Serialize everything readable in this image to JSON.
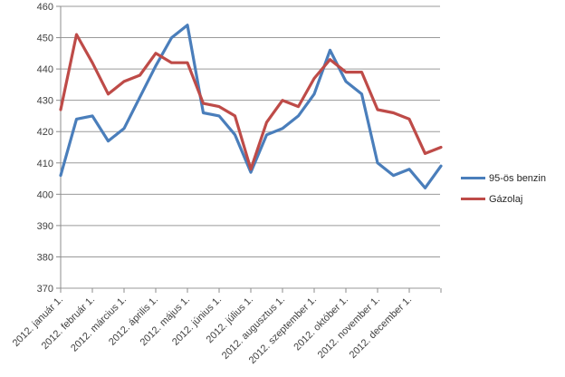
{
  "chart_data": {
    "type": "line",
    "title": "",
    "x_axis": {
      "tick_labels": [
        "2012. január 1.",
        "2012. február 1.",
        "2012. március 1.",
        "2012. április 1.",
        "2012. május 1.",
        "2012. június 1.",
        "2012. július 1.",
        "2012. augusztus 1.",
        "2012. szeptember 1.",
        "2012. október 1.",
        "2012. november 1.",
        "2012. december 1."
      ],
      "points_per_tick": 2,
      "note_frequency": "semi-monthly points, labels on month ticks"
    },
    "y_axis": {
      "min": 370,
      "max": 460,
      "step": 10,
      "tick_labels": [
        "370",
        "380",
        "390",
        "400",
        "410",
        "420",
        "430",
        "440",
        "450",
        "460"
      ]
    },
    "grid": "horizontal",
    "legend_position": "right",
    "series": [
      {
        "name": "95-ös benzin",
        "color": "#4a7ebb",
        "values": [
          406,
          424,
          425,
          417,
          421,
          431,
          441,
          450,
          454,
          426,
          425,
          419,
          407,
          419,
          421,
          425,
          432,
          446,
          436,
          432,
          410,
          406,
          408,
          402,
          409
        ]
      },
      {
        "name": "Gázolaj",
        "color": "#be4b48",
        "values": [
          427,
          451,
          442,
          432,
          436,
          438,
          445,
          442,
          442,
          429,
          428,
          425,
          408,
          423,
          430,
          428,
          437,
          443,
          439,
          439,
          427,
          426,
          424,
          413,
          415
        ]
      }
    ]
  },
  "legend": {
    "items": [
      {
        "label": "95-ös benzin",
        "color": "#4a7ebb"
      },
      {
        "label": "Gázolaj",
        "color": "#be4b48"
      }
    ]
  },
  "colors": {
    "gridline": "#9a9a9a",
    "axis": "#8c8c8c",
    "tick": "#8c8c8c",
    "label_text": "#404040",
    "background": "#ffffff"
  }
}
